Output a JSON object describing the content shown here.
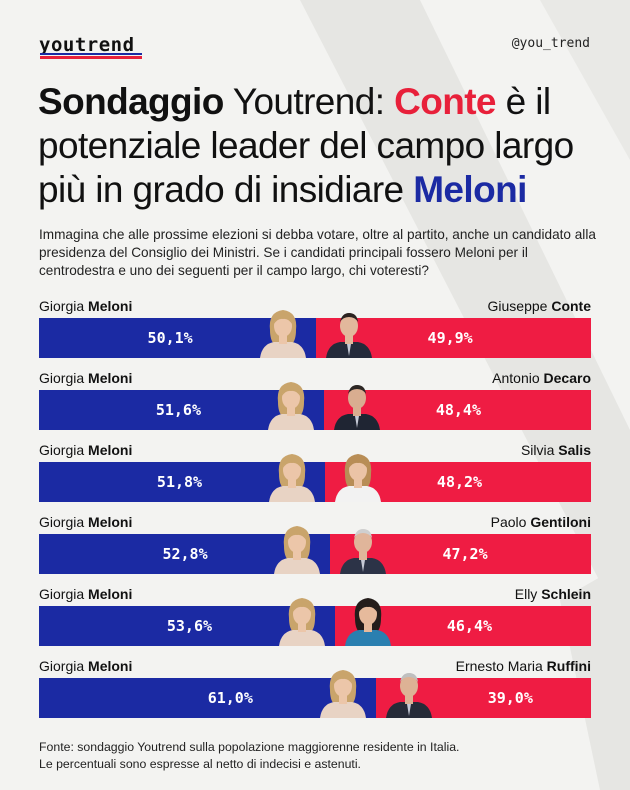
{
  "brand": {
    "logo_text": "youtrend",
    "handle": "@you_trend"
  },
  "headline": {
    "p1": "Sondaggio",
    "p2": " Youtrend: ",
    "p3": "Conte",
    "p4": " è il potenziale leader del campo largo più in grado di insidiare ",
    "p5": "Meloni"
  },
  "question": "Immagina che alle prossime elezioni si debba votare, oltre al partito, anche un candidato alla presidenza del Consiglio dei Ministri. Se i candidati principali fossero Meloni per il centrodestra e uno dei seguenti per il campo largo, chi voteresti?",
  "colors": {
    "blue": "#1b2aa3",
    "red": "#ef1c43"
  },
  "chart_data": {
    "type": "bar",
    "title": "Sondaggio Youtrend: Conte è il potenziale leader del campo largo più in grado di insidiare Meloni",
    "stacked": true,
    "orientation": "horizontal",
    "xlim": [
      0,
      100
    ],
    "unit": "%",
    "rows": [
      {
        "left_first": "Giorgia",
        "left_last": "Meloni",
        "left_value": 50.1,
        "left_label": "50,1%",
        "right_first": "Giuseppe",
        "right_last": "Conte",
        "right_value": 49.9,
        "right_label": "49,9%"
      },
      {
        "left_first": "Giorgia",
        "left_last": "Meloni",
        "left_value": 51.6,
        "left_label": "51,6%",
        "right_first": "Antonio",
        "right_last": "Decaro",
        "right_value": 48.4,
        "right_label": "48,4%"
      },
      {
        "left_first": "Giorgia",
        "left_last": "Meloni",
        "left_value": 51.8,
        "left_label": "51,8%",
        "right_first": "Silvia",
        "right_last": "Salis",
        "right_value": 48.2,
        "right_label": "48,2%"
      },
      {
        "left_first": "Giorgia",
        "left_last": "Meloni",
        "left_value": 52.8,
        "left_label": "52,8%",
        "right_first": "Paolo",
        "right_last": "Gentiloni",
        "right_value": 47.2,
        "right_label": "47,2%"
      },
      {
        "left_first": "Giorgia",
        "left_last": "Meloni",
        "left_value": 53.6,
        "left_label": "53,6%",
        "right_first": "Elly",
        "right_last": "Schlein",
        "right_value": 46.4,
        "right_label": "46,4%"
      },
      {
        "left_first": "Giorgia",
        "left_last": "Meloni",
        "left_value": 61.0,
        "left_label": "61,0%",
        "right_first": "Ernesto Maria",
        "right_last": "Ruffini",
        "right_value": 39.0,
        "right_label": "39,0%"
      }
    ]
  },
  "source": {
    "line1": "Fonte: sondaggio Youtrend sulla popolazione maggiorenne residente in Italia.",
    "line2": "Le percentuali sono espresse al netto di indecisi e astenuti."
  }
}
